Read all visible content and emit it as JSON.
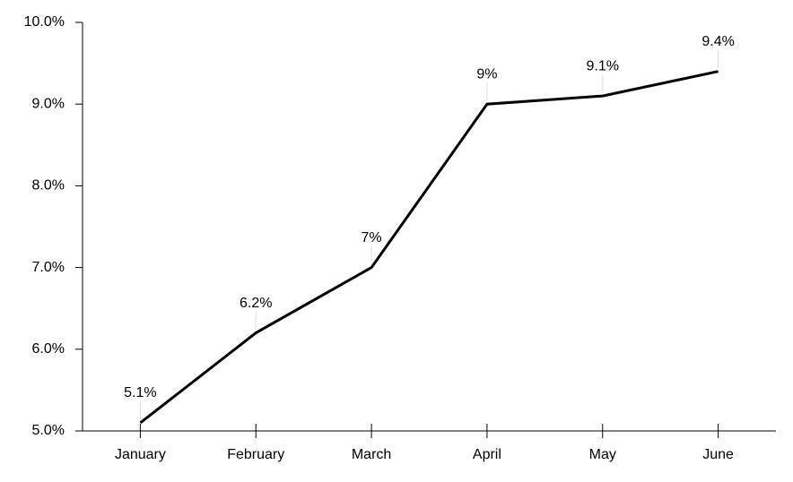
{
  "chart_data": {
    "type": "line",
    "categories": [
      "January",
      "February",
      "March",
      "April",
      "May",
      "June"
    ],
    "series": [
      {
        "color": "#000000",
        "values": [
          5.1,
          6.2,
          7,
          9,
          9.1,
          9.4
        ],
        "value_labels": [
          "5.1%",
          "6.2%",
          "7%",
          "9%",
          "9.1%",
          "9.4%"
        ]
      }
    ],
    "ylim": [
      5,
      10
    ],
    "yticks": [
      {
        "value": 5,
        "label": "5.0%"
      },
      {
        "value": 6,
        "label": "6.0%"
      },
      {
        "value": 7,
        "label": "7.0%"
      },
      {
        "value": 8,
        "label": "8.0%"
      },
      {
        "value": 9,
        "label": "9.0%"
      },
      {
        "value": 10,
        "label": "10.0%"
      }
    ],
    "grid": false
  }
}
